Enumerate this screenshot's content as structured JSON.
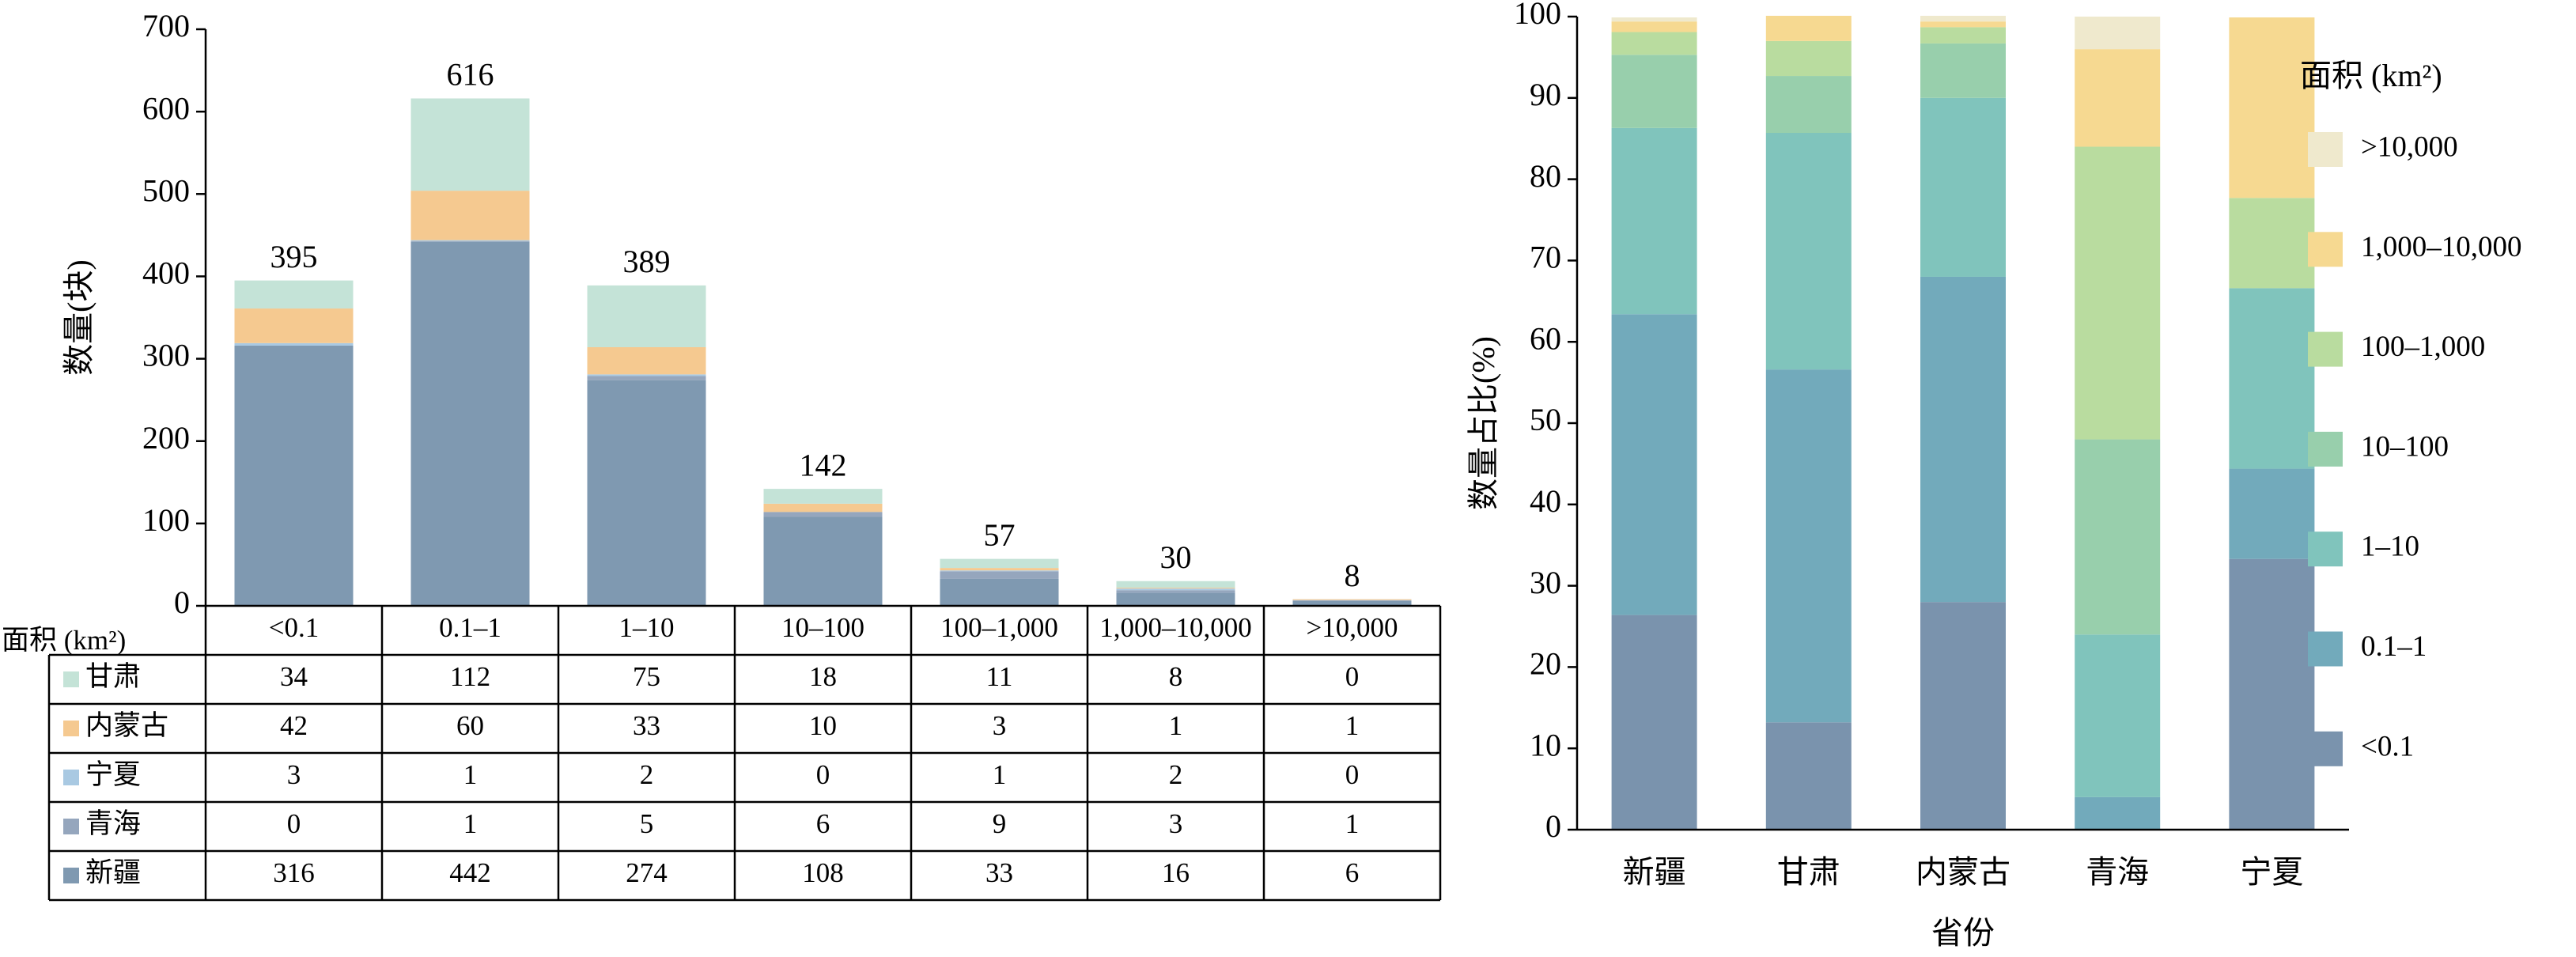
{
  "chart_data": [
    {
      "type": "bar",
      "stacked": true,
      "table": true,
      "y_label": "数量(块)",
      "table_header": "面积 (km²)",
      "categories": [
        "<0.1",
        "0.1–1",
        "1–10",
        "10–100",
        "100–1,000",
        "1,000–10,000",
        ">10,000"
      ],
      "series": [
        {
          "name": "新疆",
          "color": "#7f99b1",
          "values": [
            316,
            442,
            274,
            108,
            33,
            16,
            6
          ]
        },
        {
          "name": "青海",
          "color": "#95a6bd",
          "values": [
            0,
            1,
            5,
            6,
            9,
            3,
            1
          ]
        },
        {
          "name": "宁夏",
          "color": "#a9c9e2",
          "values": [
            3,
            1,
            2,
            0,
            1,
            2,
            0
          ]
        },
        {
          "name": "内蒙古",
          "color": "#f5c990",
          "values": [
            42,
            60,
            33,
            10,
            3,
            1,
            1
          ]
        },
        {
          "name": "甘肃",
          "color": "#c4e3d7",
          "values": [
            34,
            112,
            75,
            18,
            11,
            8,
            0
          ]
        }
      ],
      "totals": [
        395,
        616,
        389,
        142,
        57,
        30,
        8
      ],
      "ylim": [
        0,
        700
      ],
      "yticks": [
        0,
        100,
        200,
        300,
        400,
        500,
        600,
        700
      ]
    },
    {
      "type": "bar",
      "stacked": true,
      "y_label": "数量占比(%)",
      "x_label": "省份",
      "legend_title": "面积 (km²)",
      "categories": [
        "新疆",
        "甘肃",
        "内蒙古",
        "青海",
        "宁夏"
      ],
      "series": [
        {
          "name": "<0.1",
          "color": "#7a93ad",
          "values": [
            26.4,
            13.2,
            28.0,
            0,
            33.3
          ]
        },
        {
          "name": "0.1–1",
          "color": "#72aabb",
          "values": [
            37.0,
            43.4,
            40.0,
            4,
            11.1
          ]
        },
        {
          "name": "1–10",
          "color": "#80c4bc",
          "values": [
            22.9,
            29.1,
            22.0,
            20,
            22.2
          ]
        },
        {
          "name": "10–100",
          "color": "#98cfac",
          "values": [
            9.0,
            7.0,
            6.7,
            24,
            0
          ]
        },
        {
          "name": "100–1,000",
          "color": "#b9dc9f",
          "values": [
            2.8,
            4.3,
            2.0,
            36,
            11.1
          ]
        },
        {
          "name": "1,000–10,000",
          "color": "#f6d991",
          "values": [
            1.3,
            3.1,
            0.7,
            12,
            22.2
          ]
        },
        {
          "name": ">10,000",
          "color": "#efe9cd",
          "values": [
            0.5,
            0,
            0.7,
            4,
            0
          ]
        }
      ],
      "ylim": [
        0,
        100
      ],
      "yticks": [
        0,
        10,
        20,
        30,
        40,
        50,
        60,
        70,
        80,
        90,
        100
      ]
    }
  ]
}
